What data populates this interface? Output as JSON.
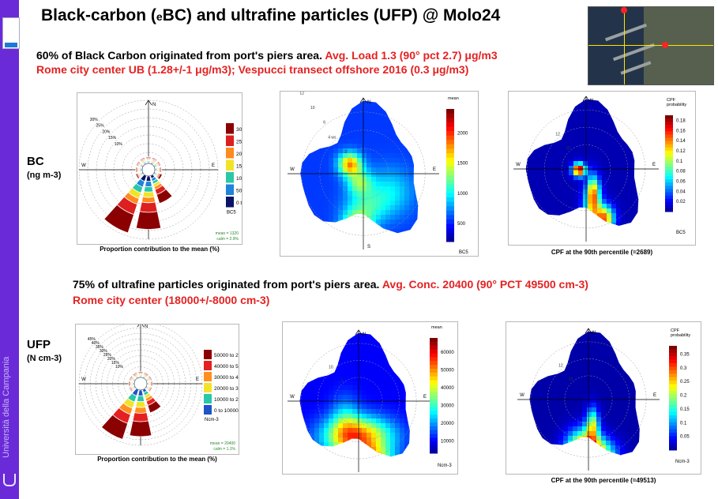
{
  "slide": {
    "title_prefix": "Black-carbon (",
    "title_sub": "e",
    "title_suffix": "BC) and ultrafine particles (UFP) @ Molo24",
    "side_text": "Università della Campania",
    "bc_line1_black": "60% of Black Carbon originated from port's piers area.",
    "bc_line1_red": "Avg. Load 1.3 (90° pct 2.7) μg/m3",
    "bc_line2_red": "Rome city center UB (1.28+/-1 μg/m3);  Vespucci transect offshore 2016 (0.3 μg/m3)",
    "ufp_line1_black": "75% of ultrafine particles originated from port's piers area.",
    "ufp_line1_red": "Avg. Conc. 20400 (90° PCT 49500 cm-3)",
    "ufp_line2_red": "Rome city center (18000+/-8000  cm-3)",
    "bc_label": "BC",
    "bc_unit": "(ng m-3)",
    "ufp_label": "UFP",
    "ufp_unit": "(N cm-3)"
  },
  "chart_data": [
    {
      "id": "bc_windrose",
      "type": "polar-bar",
      "caption": "Proportion contribution to the mean (%)",
      "ring_labels": [
        "10%",
        "15%",
        "20%",
        "25%",
        "30%"
      ],
      "direction_labels": [
        "N",
        "E",
        "W"
      ],
      "legend_title": "BC5",
      "legend_bins": [
        "3000 to 46202",
        "2500 to 3000",
        "2000 to 2500",
        "1500 to 2000",
        "1000 to 1500",
        "500 to 1000",
        "0 to 500"
      ],
      "colors": [
        "#8b0000",
        "#dd1f1f",
        "#ff8a1e",
        "#f2e32a",
        "#28c8a8",
        "#1e84dc",
        "#0a1466"
      ],
      "stats": [
        "mean = 1320",
        "calm = 2.9%"
      ],
      "sectors_deg": [
        0,
        30,
        60,
        90,
        120,
        150,
        180,
        210,
        240,
        270,
        300,
        330
      ],
      "sector_pct": [
        2.5,
        2.2,
        3,
        3.5,
        6,
        16,
        27,
        30,
        5,
        3.5,
        2.5,
        3
      ]
    },
    {
      "id": "bc_polarplot",
      "type": "polar-heatmap",
      "legend_title": "mean",
      "legend_ticks": [
        "2000",
        "1500",
        "1000",
        "500"
      ],
      "legend_min": 200,
      "legend_max": 2400,
      "ring_labels": [
        "2",
        "4 ws",
        "6",
        "10",
        "12"
      ],
      "direction_labels": [
        "N",
        "E",
        "W",
        "S"
      ],
      "footer": "BC5"
    },
    {
      "id": "bc_cpf",
      "type": "polar-heatmap",
      "legend_title": "CPF\nprobability",
      "legend_ticks": [
        "0.18",
        "0.16",
        "0.14",
        "0.12",
        "0.1",
        "0.08",
        "0.06",
        "0.04",
        "0.02"
      ],
      "legend_min": 0,
      "legend_max": 0.19,
      "ring_labels": [
        "10",
        "12"
      ],
      "direction_labels": [
        "N",
        "E",
        "W"
      ],
      "footer": "BC5",
      "caption": "CPF at the 90th percentile (=2689)"
    },
    {
      "id": "ufp_windrose",
      "type": "polar-bar",
      "caption": "Proportion contribution to the mean (%)",
      "ring_labels": [
        "10%",
        "15%",
        "20%",
        "25%",
        "30%",
        "35%",
        "40%",
        "45%"
      ],
      "direction_labels": [
        "N",
        "E",
        "W"
      ],
      "legend_title": "Ncm-3",
      "legend_bins": [
        "50000 to 2.77e+05",
        "40000 to 50000",
        "30000 to 40000",
        "20000 to 30000",
        "10000 to 20000",
        "0 to 10000"
      ],
      "colors": [
        "#8b0000",
        "#e52020",
        "#ff9020",
        "#f2e32a",
        "#28c8a8",
        "#1e54c8"
      ],
      "stats": [
        "mean = 20400",
        "calm = 1.1%"
      ],
      "sectors_deg": [
        0,
        30,
        60,
        90,
        120,
        150,
        180,
        210,
        240,
        270,
        300,
        330
      ],
      "sector_pct": [
        2.2,
        2,
        2.5,
        3,
        5,
        22,
        38,
        42,
        5,
        3,
        2,
        2.5
      ]
    },
    {
      "id": "ufp_polarplot",
      "type": "polar-heatmap",
      "legend_title": "mean",
      "legend_ticks": [
        "60000",
        "50000",
        "40000",
        "30000",
        "20000",
        "10000"
      ],
      "legend_min": 3000,
      "legend_max": 68000,
      "ring_labels": [
        "8",
        "10"
      ],
      "direction_labels": [
        "N",
        "E",
        "W"
      ],
      "footer": "Ncm-3"
    },
    {
      "id": "ufp_cpf",
      "type": "polar-heatmap",
      "legend_title": "CPF\nprobability",
      "legend_ticks": [
        "0.35",
        "0.3",
        "0.25",
        "0.2",
        "0.15",
        "0.1",
        "0.05"
      ],
      "legend_min": 0,
      "legend_max": 0.38,
      "ring_labels": [
        "10",
        "12"
      ],
      "direction_labels": [
        "N",
        "E",
        "W"
      ],
      "footer": "Ncm-3",
      "caption": "CPF at the 90th percentile (=49513)"
    }
  ]
}
